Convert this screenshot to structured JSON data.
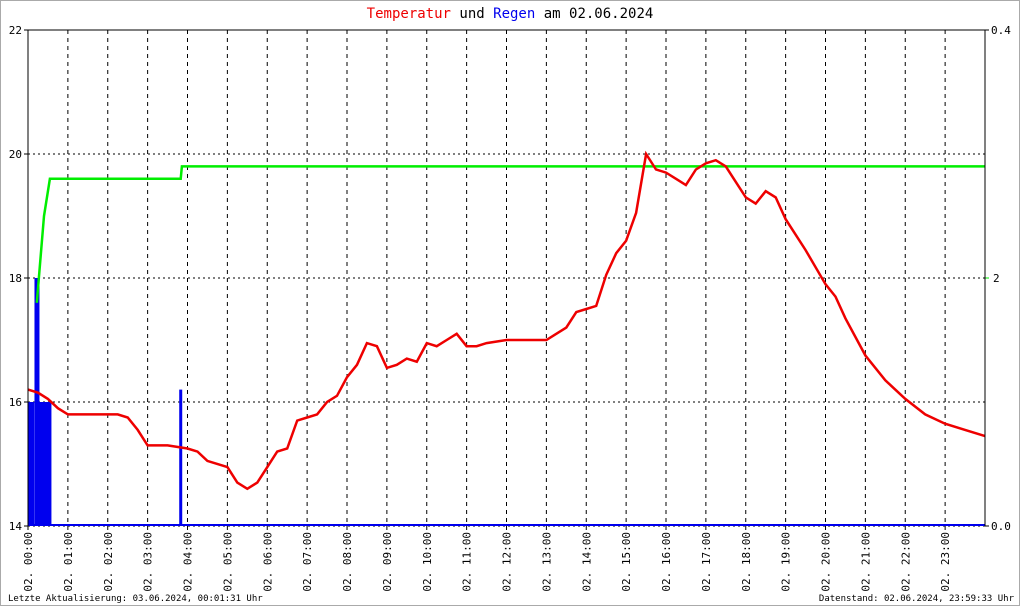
{
  "chart_data": {
    "type": "line",
    "title_and": "und",
    "title_suffix": "am 02.06.2024",
    "footer_left": "Letzte Aktualisierung: 03.06.2024, 00:01:31 Uhr",
    "footer_right": "Datenstand: 02.06.2024, 23:59:33 Uhr",
    "xlim": [
      0,
      24
    ],
    "xticks": [
      {
        "value": 0,
        "label": "02. 00:00"
      },
      {
        "value": 1,
        "label": "02. 01:00"
      },
      {
        "value": 2,
        "label": "02. 02:00"
      },
      {
        "value": 3,
        "label": "02. 03:00"
      },
      {
        "value": 4,
        "label": "02. 04:00"
      },
      {
        "value": 5,
        "label": "02. 05:00"
      },
      {
        "value": 6,
        "label": "02. 06:00"
      },
      {
        "value": 7,
        "label": "02. 07:00"
      },
      {
        "value": 8,
        "label": "02. 08:00"
      },
      {
        "value": 9,
        "label": "02. 09:00"
      },
      {
        "value": 10,
        "label": "02. 10:00"
      },
      {
        "value": 11,
        "label": "02. 11:00"
      },
      {
        "value": 12,
        "label": "02. 12:00"
      },
      {
        "value": 13,
        "label": "02. 13:00"
      },
      {
        "value": 14,
        "label": "02. 14:00"
      },
      {
        "value": 15,
        "label": "02. 15:00"
      },
      {
        "value": 16,
        "label": "02. 16:00"
      },
      {
        "value": 17,
        "label": "02. 17:00"
      },
      {
        "value": 18,
        "label": "02. 18:00"
      },
      {
        "value": 19,
        "label": "02. 19:00"
      },
      {
        "value": 20,
        "label": "02. 20:00"
      },
      {
        "value": 21,
        "label": "02. 21:00"
      },
      {
        "value": 22,
        "label": "02. 22:00"
      },
      {
        "value": 23,
        "label": "02. 23:00"
      }
    ],
    "ylim": [
      14,
      22
    ],
    "yticks": [
      14,
      16,
      18,
      20,
      22
    ],
    "y2lim": [
      0,
      0.4
    ],
    "y2ticks": [
      {
        "value": 0,
        "label": "0.0"
      },
      {
        "value": 0.4,
        "label": "0.4"
      }
    ],
    "y3lim": [
      0,
      4
    ],
    "y3ticks": [
      2
    ],
    "y3color": "#00ee00",
    "grid": true,
    "series": [
      {
        "name": "Temperatur",
        "color": "#ee0000",
        "type": "line",
        "axis": "y",
        "x": [
          0,
          0.25,
          0.5,
          0.75,
          1,
          1.5,
          2,
          2.25,
          2.5,
          2.75,
          3,
          3.5,
          4,
          4.25,
          4.5,
          5,
          5.25,
          5.5,
          5.75,
          6,
          6.25,
          6.5,
          6.75,
          7,
          7.25,
          7.5,
          7.75,
          8,
          8.25,
          8.5,
          8.75,
          9,
          9.25,
          9.5,
          9.75,
          10,
          10.25,
          10.5,
          10.75,
          11,
          11.25,
          11.5,
          12,
          12.5,
          13,
          13.25,
          13.5,
          13.75,
          14,
          14.25,
          14.5,
          14.75,
          15,
          15.25,
          15.5,
          15.75,
          16,
          16.25,
          16.5,
          16.75,
          17,
          17.25,
          17.5,
          17.75,
          18,
          18.25,
          18.5,
          18.75,
          19,
          19.5,
          20,
          20.25,
          20.5,
          21,
          21.5,
          22,
          22.5,
          23,
          23.5,
          24
        ],
        "values": [
          16.2,
          16.15,
          16.05,
          15.9,
          15.8,
          15.8,
          15.8,
          15.8,
          15.75,
          15.55,
          15.3,
          15.3,
          15.25,
          15.2,
          15.05,
          14.95,
          14.7,
          14.6,
          14.7,
          14.95,
          15.2,
          15.25,
          15.7,
          15.75,
          15.8,
          16.0,
          16.1,
          16.4,
          16.6,
          16.95,
          16.9,
          16.55,
          16.6,
          16.7,
          16.65,
          16.95,
          16.9,
          17.0,
          17.1,
          16.9,
          16.9,
          16.95,
          17.0,
          17.0,
          17.0,
          17.1,
          17.2,
          17.45,
          17.5,
          17.55,
          18.05,
          18.4,
          18.6,
          19.05,
          20.0,
          19.75,
          19.7,
          19.6,
          19.5,
          19.75,
          19.85,
          19.9,
          19.8,
          19.55,
          19.3,
          19.2,
          19.4,
          19.3,
          18.95,
          18.45,
          17.9,
          17.7,
          17.35,
          16.75,
          16.35,
          16.05,
          15.8,
          15.65,
          15.55,
          15.45
        ]
      },
      {
        "name": "Regen",
        "color": "#0000ee",
        "type": "bar",
        "axis": "y2",
        "x": [
          0.05,
          0.12,
          0.2,
          0.25,
          0.3,
          0.35,
          0.4,
          0.45,
          0.5,
          0.55,
          3.83
        ],
        "values": [
          0.1,
          0.1,
          0.2,
          0.2,
          0.1,
          0.1,
          0.1,
          0.1,
          0.1,
          0.1,
          0.11
        ]
      },
      {
        "color": "#00ee00",
        "type": "line",
        "axis": "y3",
        "x": [
          0.22,
          0.4,
          0.55,
          3.83,
          3.86,
          24
        ],
        "values": [
          1.8,
          2.5,
          2.8,
          2.8,
          2.9,
          2.9
        ]
      }
    ]
  }
}
